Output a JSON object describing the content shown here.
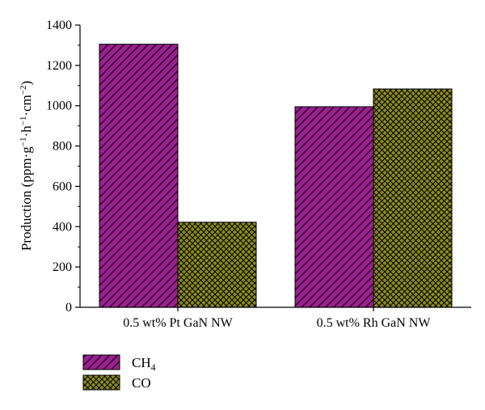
{
  "chart_data": {
    "type": "bar",
    "categories": [
      "0.5 wt% Pt GaN NW",
      "0.5 wt% Rh GaN NW"
    ],
    "series": [
      {
        "name": "CH4",
        "name_main": "CH",
        "name_sub": "4",
        "values": [
          1305,
          995
        ],
        "color": "#9b1f8f",
        "pattern": "diagonal-hatch"
      },
      {
        "name": "CO",
        "name_main": "CO",
        "name_sub": "",
        "values": [
          422,
          1083
        ],
        "color": "#8b8a1e",
        "pattern": "cross-hatch"
      }
    ],
    "ylabel": {
      "text": "Production (ppm·g",
      "sup1": "−1",
      "mid1": "·h",
      "sup2": "−1",
      "mid2": "·cm",
      "sup3": "−2",
      "end": ")"
    },
    "xlabel": "",
    "ylim": [
      0,
      1400
    ],
    "yticks": [
      "0",
      "200",
      "400",
      "600",
      "800",
      "1000",
      "1200",
      "1400"
    ],
    "grid": false,
    "legend_position": "bottom-left"
  }
}
